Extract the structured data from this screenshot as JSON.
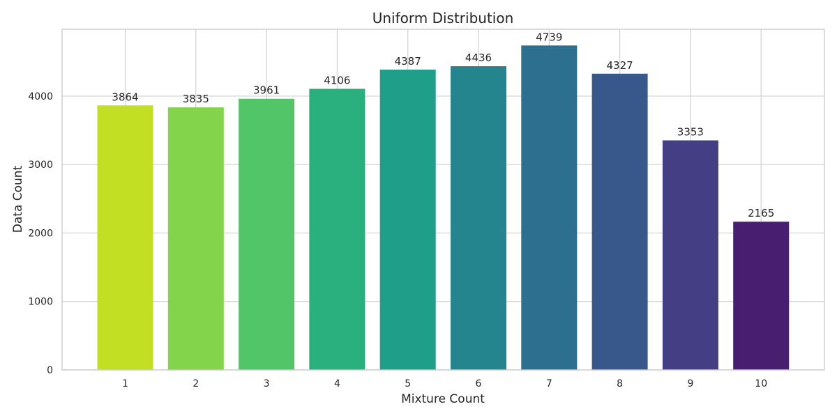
{
  "chart_data": {
    "type": "bar",
    "title": "Uniform Distribution",
    "xlabel": "Mixture Count",
    "ylabel": "Data Count",
    "categories": [
      "1",
      "2",
      "3",
      "4",
      "5",
      "6",
      "7",
      "8",
      "9",
      "10"
    ],
    "values": [
      3864,
      3835,
      3961,
      4106,
      4387,
      4436,
      4739,
      4327,
      3353,
      2165
    ],
    "colors": [
      "#c2df23",
      "#84d44b",
      "#52c569",
      "#2ab07f",
      "#1f9e89",
      "#25858e",
      "#2d6f8e",
      "#38588c",
      "#443f85",
      "#481f70"
    ],
    "ylim": [
      0,
      4976
    ],
    "yticks": [
      0,
      1000,
      2000,
      3000,
      4000
    ],
    "grid": true,
    "legend": "none"
  }
}
